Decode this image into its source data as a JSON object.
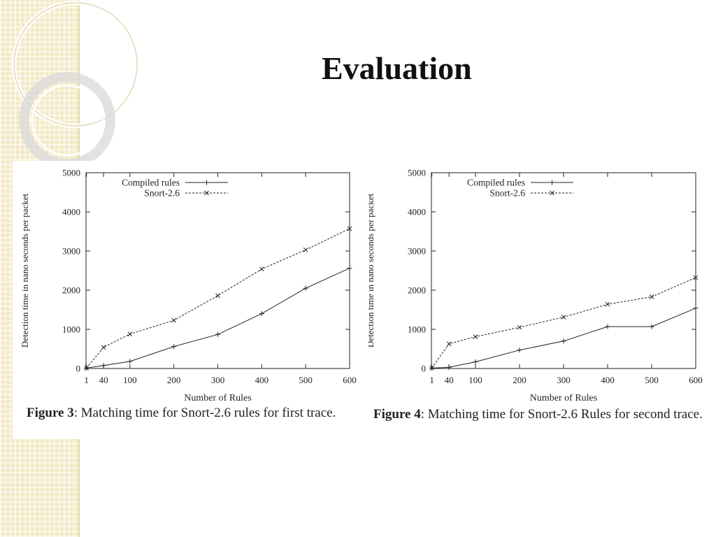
{
  "slide": {
    "title": "Evaluation"
  },
  "figures": [
    {
      "caption_label": "Figure 3",
      "caption_text": ": Matching time for Snort-2.6 rules for first trace."
    },
    {
      "caption_label": "Figure 4",
      "caption_text": ": Matching time for Snort-2.6 Rules for second trace."
    }
  ],
  "colors": {
    "ink": "#222222",
    "strip": "#f3e9c6"
  },
  "chart_data": [
    {
      "type": "line",
      "x": [
        1,
        40,
        100,
        200,
        300,
        400,
        500,
        600
      ],
      "x_ticks": [
        "1",
        "40",
        "100",
        "200",
        "300",
        "400",
        "500",
        "600"
      ],
      "xlim": [
        0,
        600
      ],
      "y_ticks": [
        "0",
        "1000",
        "2000",
        "3000",
        "4000",
        "5000"
      ],
      "ylim": [
        0,
        5000
      ],
      "xlabel": "Number of Rules",
      "ylabel": "Detection time in nano seconds per packet",
      "legend_position": "top-left",
      "series": [
        {
          "name": "Compiled rules",
          "style": "solid",
          "marker": "plus",
          "values": [
            10,
            75,
            180,
            560,
            870,
            1400,
            2050,
            2560
          ]
        },
        {
          "name": "Snort-2.6",
          "style": "dashed",
          "marker": "x",
          "values": [
            10,
            540,
            880,
            1230,
            1860,
            2540,
            3030,
            3570
          ]
        }
      ]
    },
    {
      "type": "line",
      "x": [
        1,
        40,
        100,
        200,
        300,
        400,
        500,
        600
      ],
      "x_ticks": [
        "1",
        "40",
        "100",
        "200",
        "300",
        "400",
        "500",
        "600"
      ],
      "xlim": [
        0,
        600
      ],
      "y_ticks": [
        "0",
        "1000",
        "2000",
        "3000",
        "4000",
        "5000"
      ],
      "ylim": [
        0,
        5000
      ],
      "xlabel": "Number of Rules",
      "ylabel": "Detection time in nano seconds per packet",
      "legend_position": "top-left",
      "series": [
        {
          "name": "Compiled rules",
          "style": "solid",
          "marker": "plus",
          "values": [
            10,
            30,
            170,
            470,
            700,
            1070,
            1070,
            1540
          ]
        },
        {
          "name": "Snort-2.6",
          "style": "dashed",
          "marker": "x",
          "values": [
            10,
            630,
            810,
            1050,
            1310,
            1640,
            1830,
            2320
          ]
        }
      ]
    }
  ]
}
